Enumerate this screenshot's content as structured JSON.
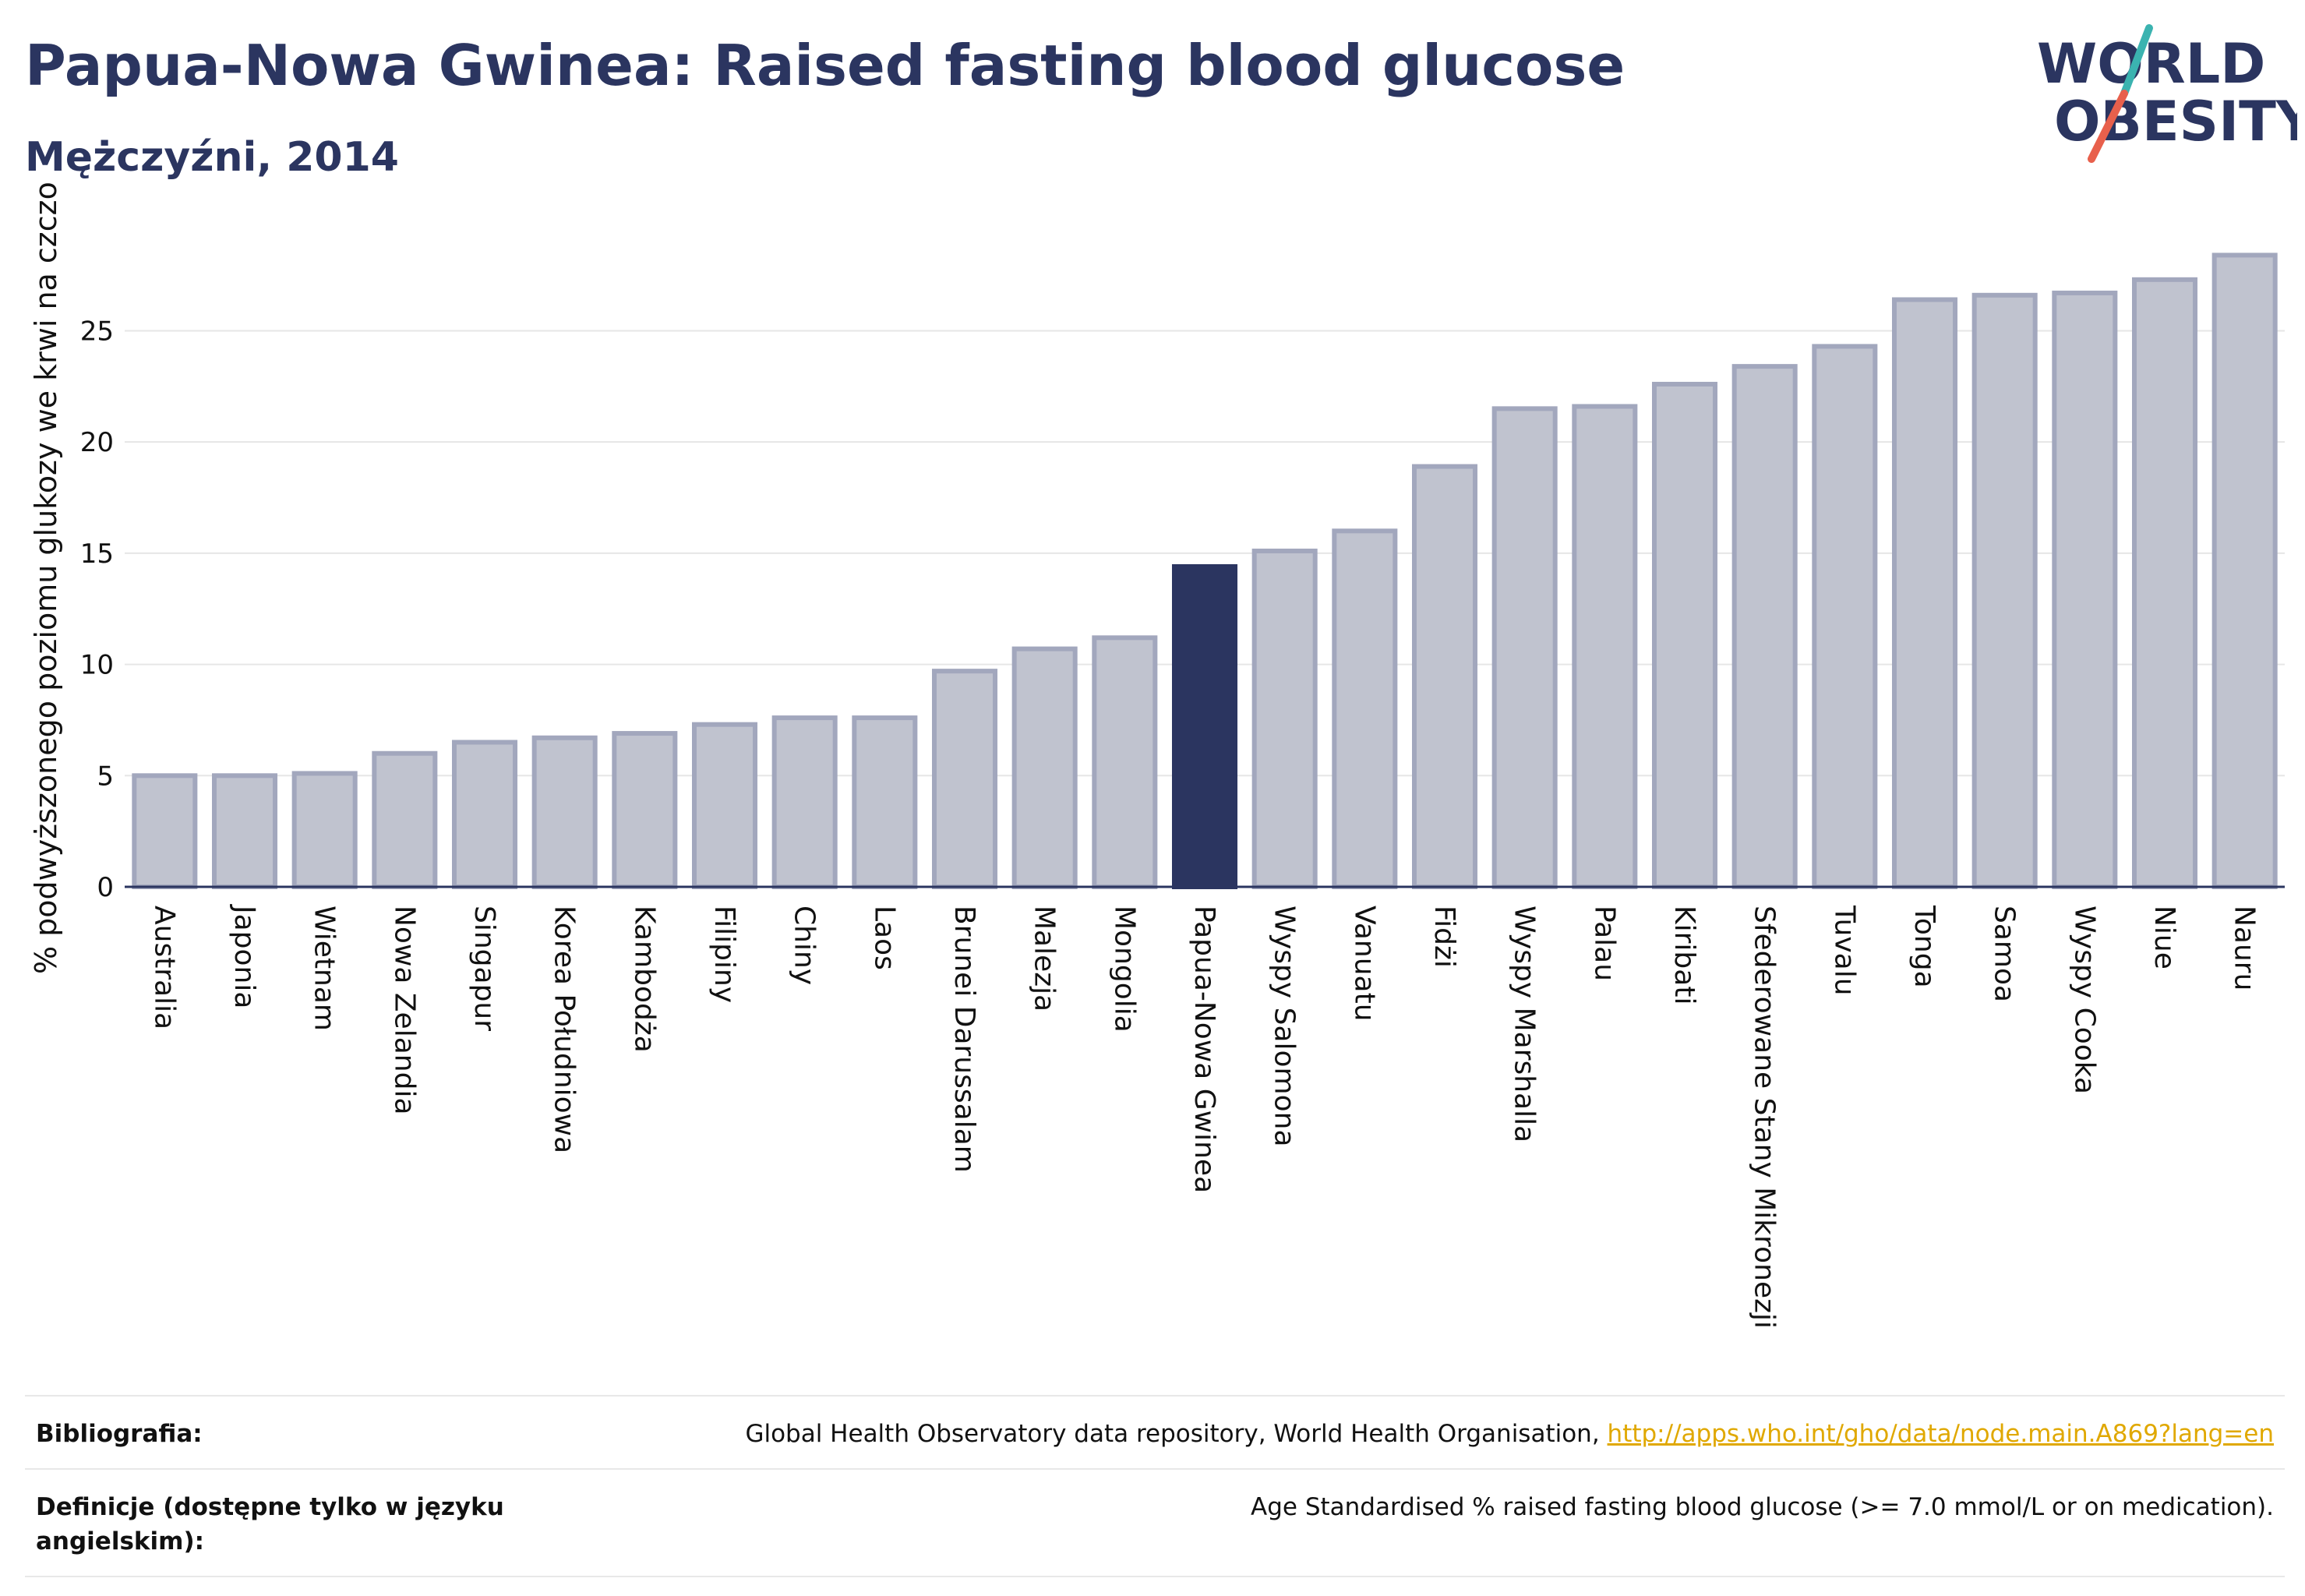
{
  "header": {
    "title": "Papua-Nowa Gwinea: Raised fasting blood glucose",
    "subtitle": "Mężczyźni, 2014"
  },
  "logo": {
    "line1": "WORLD",
    "line2": "OBESITY",
    "accent_teal": "#3bb3b0",
    "accent_red": "#e8604c"
  },
  "chart_data": {
    "type": "bar",
    "ylabel": "% podwyższonego poziomu glukozy we krwi na czczo",
    "xlabel": "",
    "ylim": [
      0,
      28.8
    ],
    "yticks": [
      0,
      5,
      10,
      15,
      20,
      25
    ],
    "grid": true,
    "highlight": "Papua-Nowa Gwinea",
    "colors": {
      "bar": "#c0c3cf",
      "bar_edge": "#a2a7bd",
      "highlight": "#2b3560"
    },
    "categories": [
      "Australia",
      "Japonia",
      "Wietnam",
      "Nowa Zelandia",
      "Singapur",
      "Korea Południowa",
      "Kambodża",
      "Filipiny",
      "Chiny",
      "Laos",
      "Brunei Darussalam",
      "Malezja",
      "Mongolia",
      "Papua-Nowa Gwinea",
      "Wyspy Salomona",
      "Vanuatu",
      "Fidżi",
      "Wyspy Marshalla",
      "Palau",
      "Kiribati",
      "Sfederowane Stany Mikronezji",
      "Tuvalu",
      "Tonga",
      "Samoa",
      "Wyspy Cooka",
      "Niue",
      "Nauru"
    ],
    "values": [
      5.0,
      5.0,
      5.1,
      6.0,
      6.5,
      6.7,
      6.9,
      7.3,
      7.6,
      7.6,
      9.7,
      10.7,
      11.2,
      14.4,
      15.1,
      16.0,
      18.9,
      21.5,
      21.6,
      22.6,
      23.4,
      24.3,
      26.4,
      26.6,
      26.7,
      27.3,
      28.4
    ]
  },
  "footer": {
    "bibliography_label": "Bibliografia:",
    "bibliography_text": "Global Health Observatory data repository, World Health Organisation,",
    "bibliography_link": "http://apps.who.int/gho/data/node.main.A869?lang=en",
    "definitions_label": "Definicje (dostępne tylko w języku angielskim):",
    "definitions_text": "Age Standardised % raised fasting blood glucose (>= 7.0 mmol/L or on medication)."
  }
}
